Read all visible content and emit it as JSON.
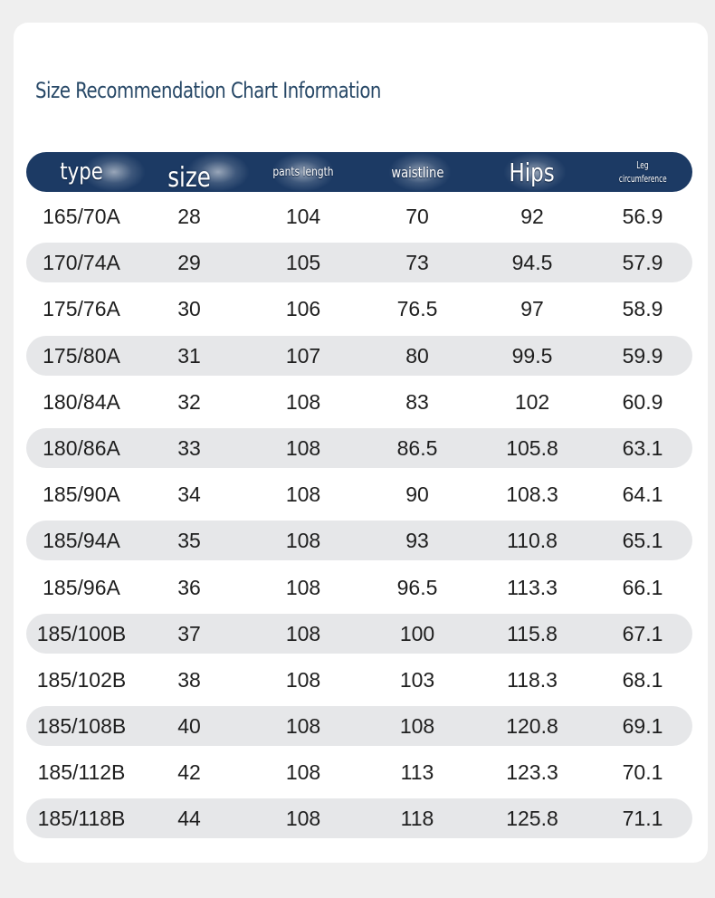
{
  "title": "Size Recommendation Chart Information",
  "headers": {
    "type": "type",
    "size": "size",
    "pants_length": "pants length",
    "waistline": "waistline",
    "hips": "Hips",
    "leg_line1": "Leg",
    "leg_line2": "circumference"
  },
  "colors": {
    "title": "#264766",
    "header_background": "#1c3a64",
    "stripe": "#e6e7e9",
    "card": "#ffffff",
    "page_background": "#efefef"
  },
  "rows": [
    [
      "165/70A",
      "28",
      "104",
      "70",
      "92",
      "56.9"
    ],
    [
      "170/74A",
      "29",
      "105",
      "73",
      "94.5",
      "57.9"
    ],
    [
      "175/76A",
      "30",
      "106",
      "76.5",
      "97",
      "58.9"
    ],
    [
      "175/80A",
      "31",
      "107",
      "80",
      "99.5",
      "59.9"
    ],
    [
      "180/84A",
      "32",
      "108",
      "83",
      "102",
      "60.9"
    ],
    [
      "180/86A",
      "33",
      "108",
      "86.5",
      "105.8",
      "63.1"
    ],
    [
      "185/90A",
      "34",
      "108",
      "90",
      "108.3",
      "64.1"
    ],
    [
      "185/94A",
      "35",
      "108",
      "93",
      "110.8",
      "65.1"
    ],
    [
      "185/96A",
      "36",
      "108",
      "96.5",
      "113.3",
      "66.1"
    ],
    [
      "185/100B",
      "37",
      "108",
      "100",
      "115.8",
      "67.1"
    ],
    [
      "185/102B",
      "38",
      "108",
      "103",
      "118.3",
      "68.1"
    ],
    [
      "185/108B",
      "40",
      "108",
      "108",
      "120.8",
      "69.1"
    ],
    [
      "185/112B",
      "42",
      "108",
      "113",
      "123.3",
      "70.1"
    ],
    [
      "185/118B",
      "44",
      "108",
      "118",
      "125.8",
      "71.1"
    ]
  ]
}
